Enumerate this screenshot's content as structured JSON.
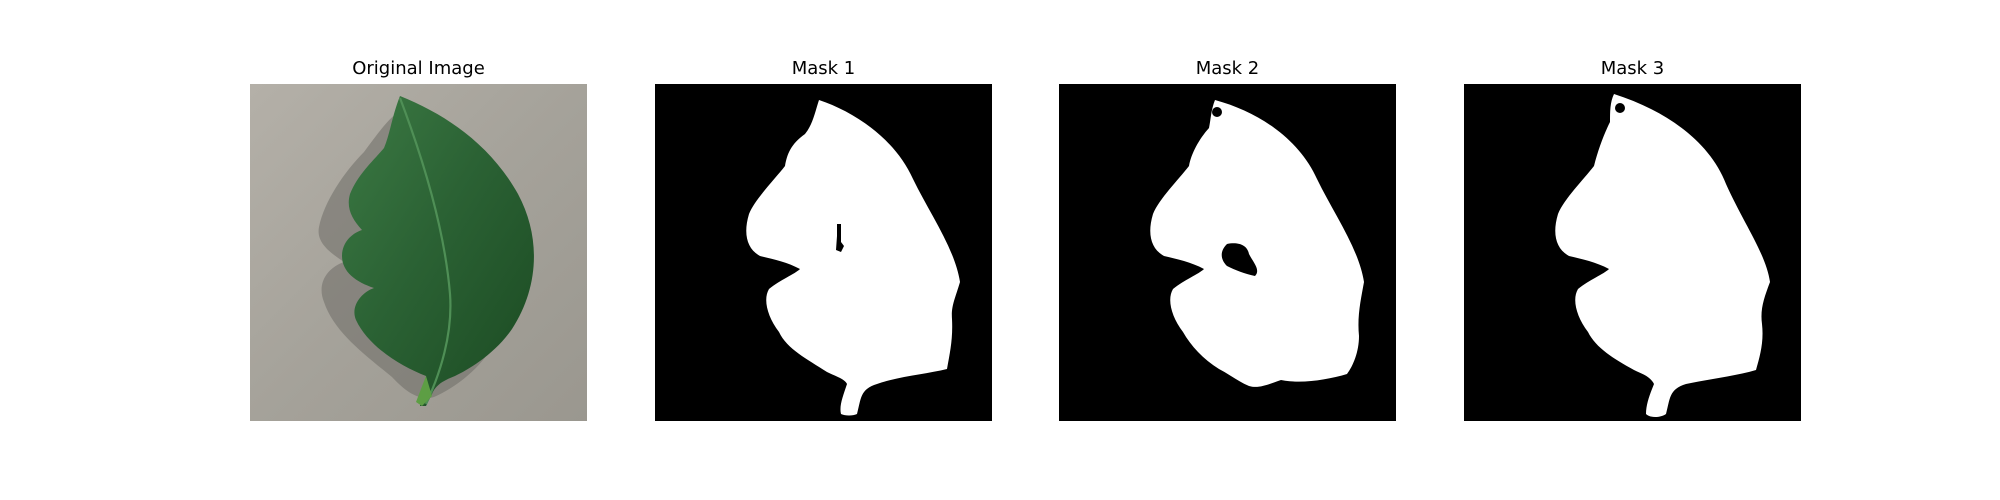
{
  "panels": [
    {
      "title": "Original Image",
      "kind": "photo",
      "subject": "green leaf on gray background"
    },
    {
      "title": "Mask 1",
      "kind": "mask"
    },
    {
      "title": "Mask 2",
      "kind": "mask"
    },
    {
      "title": "Mask 3",
      "kind": "mask"
    }
  ],
  "colors": {
    "mask_background": "#000000",
    "mask_foreground": "#ffffff",
    "leaf_dark": "#1f4f26",
    "leaf_light": "#3f7a45",
    "ground": "#a7a49c"
  }
}
